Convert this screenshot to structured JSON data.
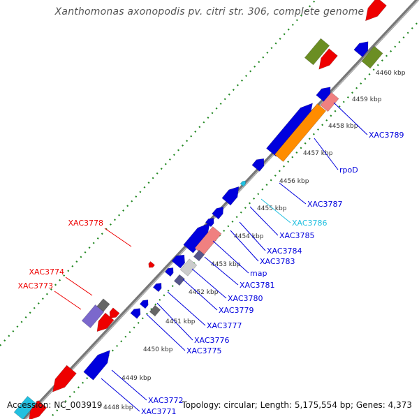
{
  "title": "Xanthomonas axonopodis pv. citri str. 306, complete genome",
  "footer": {
    "accession": "Accession: NC_003919",
    "summary": "Topology: circular; Length: 5,175,554 bp; Genes: 4,373"
  },
  "colors": {
    "forward_cds": "#0000dd",
    "reverse_cds": "#ee0000",
    "rrna": "#ff8c00",
    "trna": "#6b8e23",
    "pseudo": "#f08080",
    "misc": "#666666",
    "other": "#7b68cc",
    "highlight": "#22c0e0",
    "backbone": "#777777",
    "tick_dots": "#228822"
  },
  "ticks": [
    "4448 kbp",
    "4449 kbp",
    "4450 kbp",
    "4451 kbp",
    "4452 kbp",
    "4453 kbp",
    "4454 kbp",
    "4455 kbp",
    "4456 kbp",
    "4457 kbp",
    "4458 kbp",
    "4459 kbp",
    "4460 kbp"
  ],
  "labels": {
    "forward": [
      "XAC3789",
      "rpoD",
      "XAC3787",
      "XAC3786",
      "XAC3785",
      "XAC3784",
      "XAC3783",
      "map",
      "XAC3781",
      "XAC3780",
      "XAC3779",
      "XAC3777",
      "XAC3776",
      "XAC3775",
      "XAC3772",
      "XAC3771"
    ],
    "reverse": [
      "XAC3778",
      "XAC3774",
      "XAC3773"
    ]
  }
}
